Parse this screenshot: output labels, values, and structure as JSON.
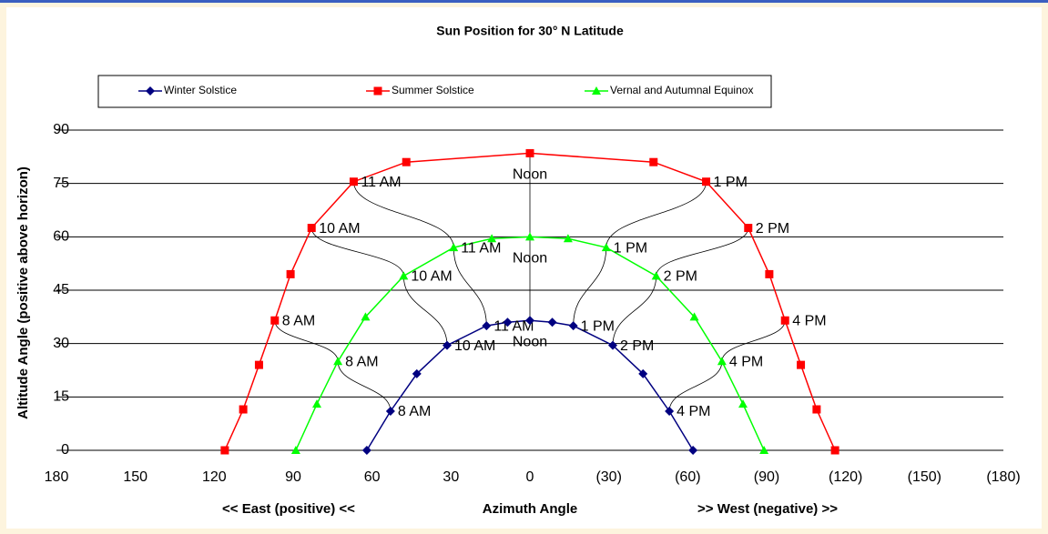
{
  "chart_data": {
    "type": "line",
    "title": "Sun Position for 30° N Latitude",
    "xlabel": "Azimuth Angle",
    "ylabel": "Altitude Angle (positive above horizon)",
    "annotations": [
      "<<  East (positive)  <<",
      ">>  West (negative) >>"
    ],
    "xlim": [
      180,
      -180
    ],
    "ylim": [
      0,
      90
    ],
    "xticks": [
      180,
      150,
      120,
      90,
      60,
      30,
      0,
      {
        "value": -30,
        "label": "(30)"
      },
      {
        "value": -60,
        "label": "(60)"
      },
      {
        "value": -90,
        "label": "(90)"
      },
      {
        "value": -120,
        "label": "(120)"
      },
      {
        "value": -150,
        "label": "(150)"
      },
      {
        "value": -180,
        "label": "(180)"
      }
    ],
    "xtick_negative_color": "#ff0000",
    "yticks": [
      0,
      15,
      30,
      45,
      60,
      75,
      90
    ],
    "grid": true,
    "legend": "top",
    "series": [
      {
        "name": "Winter Solstice",
        "color": "#000080",
        "marker": "diamond",
        "x": [
          62,
          53,
          43,
          31.5,
          16.5,
          8.5,
          0,
          -8.5,
          -16.5,
          -31.5,
          -43,
          -53,
          -62
        ],
        "values": [
          0,
          11,
          21.5,
          29.5,
          35,
          36,
          36.5,
          36,
          35,
          29.5,
          21.5,
          11,
          0
        ],
        "point_labels": [
          null,
          "8 AM",
          null,
          "10 AM",
          "11 AM",
          null,
          "Noon",
          null,
          "1 PM",
          "2 PM",
          null,
          "4 PM",
          null
        ]
      },
      {
        "name": "Summer Solstice",
        "color": "#ff0000",
        "marker": "square",
        "x": [
          116,
          109,
          103,
          97,
          91,
          83,
          67,
          47,
          0,
          -47,
          -67,
          -83,
          -91,
          -97,
          -103,
          -109,
          -116
        ],
        "values": [
          0,
          11.5,
          24,
          36.5,
          49.5,
          62.5,
          75.5,
          81,
          83.5,
          81,
          75.5,
          62.5,
          49.5,
          36.5,
          24,
          11.5,
          0
        ],
        "point_labels": [
          null,
          null,
          null,
          "8 AM",
          null,
          "10 AM",
          "11 AM",
          null,
          "Noon",
          null,
          "1 PM",
          "2 PM",
          null,
          "4 PM",
          null,
          null,
          null
        ]
      },
      {
        "name": "Vernal and Autumnal Equinox",
        "color": "#00ff00",
        "marker": "triangle",
        "x": [
          89,
          81,
          73,
          62.5,
          48,
          29,
          14.5,
          0,
          -14.5,
          -29,
          -48,
          -62.5,
          -73,
          -81,
          -89
        ],
        "values": [
          0,
          13,
          25,
          37.5,
          49,
          57,
          59.5,
          60,
          59.5,
          57,
          49,
          37.5,
          25,
          13,
          0
        ],
        "point_labels": [
          null,
          null,
          "8 AM",
          null,
          "10 AM",
          "11 AM",
          null,
          "Noon",
          null,
          "1 PM",
          "2 PM",
          null,
          "4 PM",
          null,
          null
        ]
      }
    ]
  }
}
